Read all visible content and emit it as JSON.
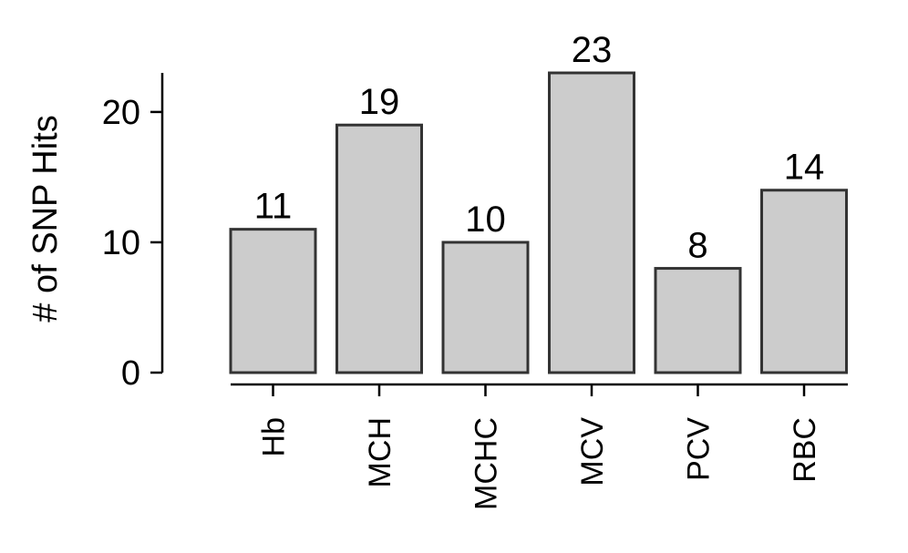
{
  "chart_data": {
    "type": "bar",
    "categories": [
      "Hb",
      "MCH",
      "MCHC",
      "MCV",
      "PCV",
      "RBC"
    ],
    "values": [
      11,
      19,
      10,
      23,
      8,
      14
    ],
    "data_labels": [
      "11",
      "19",
      "10",
      "23",
      "8",
      "14"
    ],
    "title": "",
    "xlabel": "",
    "ylabel": "# of SNP Hits",
    "ylim": [
      0,
      23
    ],
    "yticks": [
      0,
      10,
      20
    ],
    "ytick_labels": [
      "0",
      "10",
      "20"
    ],
    "grid": false,
    "bar_color": "#cccccc",
    "edge_color": "#333333"
  }
}
